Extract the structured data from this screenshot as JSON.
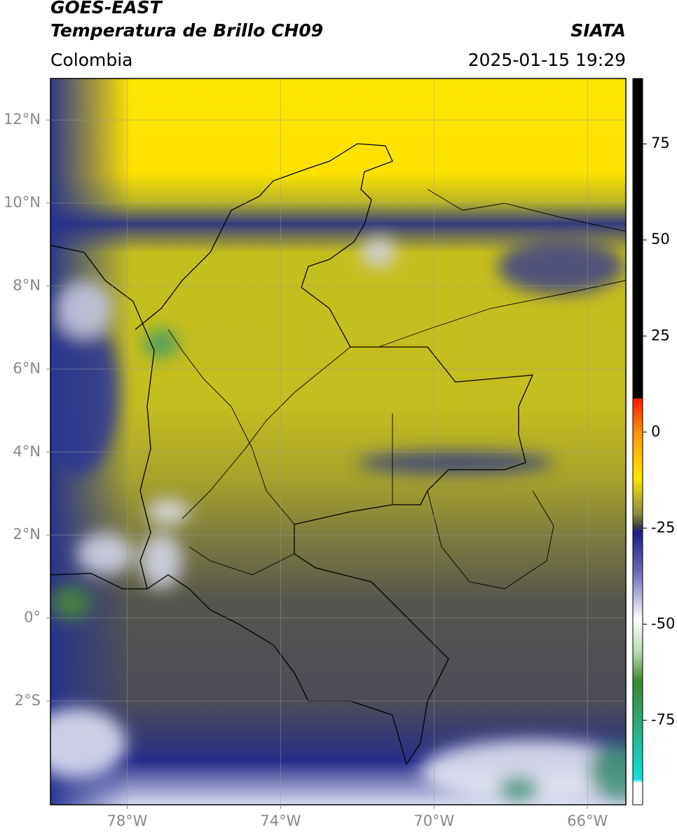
{
  "header": {
    "title": "GOES-EAST",
    "subtitle": "Temperatura de Brillo CH09",
    "source": "SIATA",
    "region": "Colombia",
    "timestamp": "2025-01-15 19:29"
  },
  "map": {
    "xlim": [
      -80,
      -65
    ],
    "ylim": [
      -4.5,
      13
    ],
    "xticks": [
      {
        "value": -78,
        "label": "78°W"
      },
      {
        "value": -74,
        "label": "74°W"
      },
      {
        "value": -70,
        "label": "70°W"
      },
      {
        "value": -66,
        "label": "66°W"
      }
    ],
    "yticks": [
      {
        "value": 12,
        "label": "12°N"
      },
      {
        "value": 10,
        "label": "10°N"
      },
      {
        "value": 8,
        "label": "8°N"
      },
      {
        "value": 6,
        "label": "6°N"
      },
      {
        "value": 4,
        "label": "4°N"
      },
      {
        "value": 2,
        "label": "2°N"
      },
      {
        "value": 0,
        "label": "0°"
      },
      {
        "value": -2,
        "label": "2°S"
      }
    ],
    "grid": true
  },
  "colorbar": {
    "range": [
      -97,
      92
    ],
    "ticks": [
      75,
      50,
      25,
      0,
      -25,
      -50,
      -75
    ]
  }
}
